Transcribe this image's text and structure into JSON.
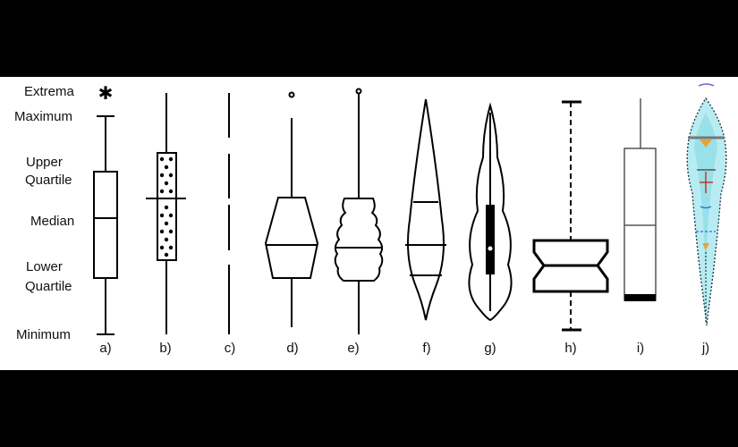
{
  "colors": {
    "background": "#000000",
    "panel": "#ffffff",
    "ink": "#000000",
    "violin_fill": "#b9ecf2",
    "violin_fill_dark": "#7fd8e2",
    "accent_orange": "#e8a23a",
    "accent_red": "#c0392b",
    "accent_blue": "#2c6fd1"
  },
  "labels": {
    "extrema": "Extrema",
    "maximum": "Maximum",
    "upper_quartile_1": "Upper",
    "upper_quartile_2": "Quartile",
    "median": "Median",
    "lower_quartile_1": "Lower",
    "lower_quartile_2": "Quartile",
    "minimum": "Minimum"
  },
  "subfigures": [
    "a)",
    "b)",
    "c)",
    "d)",
    "e)",
    "f)",
    "g)",
    "h)",
    "i)",
    "j)"
  ]
}
